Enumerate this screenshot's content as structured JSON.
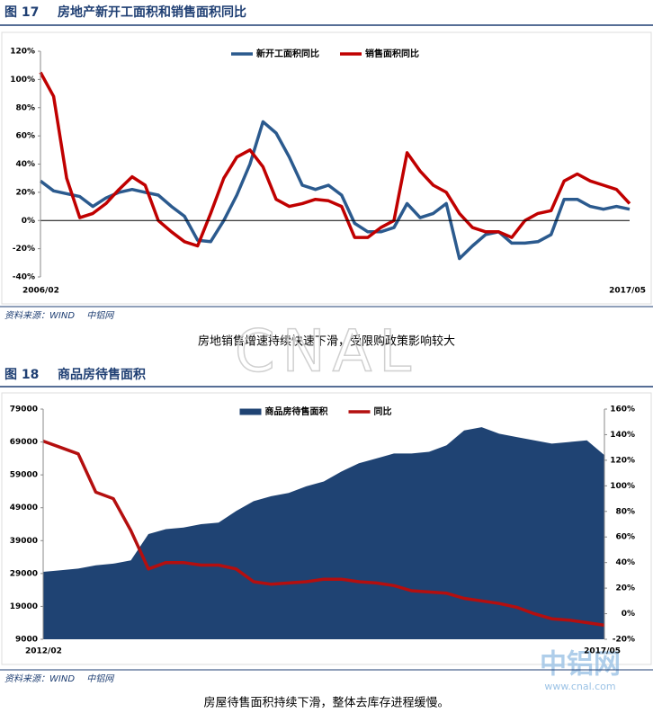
{
  "figures": [
    {
      "label": "图 17",
      "title": "房地产新开工面积和销售面积同比",
      "source": "资料来源：WIND　 中铝网",
      "caption": "房地销售增速持续快速下滑，受限购政策影响较大"
    },
    {
      "label": "图 18",
      "title": "商品房待售面积",
      "source": "资料来源：WIND　 中铝网",
      "caption": "房屋待售面积持续下滑，整体去库存进程缓慢。"
    }
  ],
  "watermark": {
    "text": "CNAL",
    "logo": "中铝网",
    "url": "www.cnal.com"
  },
  "chart_data": [
    {
      "type": "line",
      "legend": "top",
      "categories": [
        "2006/02",
        null,
        null,
        null,
        null,
        null,
        null,
        null,
        null,
        null,
        null,
        null,
        null,
        null,
        null,
        null,
        null,
        null,
        null,
        null,
        null,
        null,
        null,
        null,
        null,
        null,
        null,
        null,
        null,
        null,
        null,
        null,
        null,
        null,
        null,
        null,
        null,
        null,
        null,
        null,
        null,
        null,
        null,
        null,
        null,
        "2017/05"
      ],
      "ylim": [
        -40,
        120
      ],
      "yticks": [
        {
          "value": -40,
          "label": "-40%"
        },
        {
          "value": -20,
          "label": "-20%"
        },
        {
          "value": 0,
          "label": "0%"
        },
        {
          "value": 20,
          "label": "20%"
        },
        {
          "value": 40,
          "label": "40%"
        },
        {
          "value": 60,
          "label": "60%"
        },
        {
          "value": 80,
          "label": "80%"
        },
        {
          "value": 100,
          "label": "100%"
        },
        {
          "value": 120,
          "label": "120%"
        }
      ],
      "series": [
        {
          "name": "新开工面积同比",
          "color": "#2b5a8e",
          "values": [
            28,
            21,
            19,
            17,
            10,
            16,
            20,
            22,
            20,
            18,
            10,
            3,
            -14,
            -15,
            0,
            18,
            40,
            70,
            62,
            45,
            25,
            22,
            25,
            18,
            -2,
            -8,
            -8,
            -5,
            12,
            2,
            5,
            12,
            -27,
            -18,
            -10,
            -8,
            -16,
            -16,
            -15,
            -10,
            15,
            15,
            10,
            8,
            10,
            8
          ]
        },
        {
          "name": "销售面积同比",
          "color": "#c00000",
          "values": [
            105,
            88,
            30,
            2,
            5,
            12,
            22,
            31,
            25,
            0,
            -8,
            -15,
            -18,
            5,
            30,
            45,
            50,
            38,
            15,
            10,
            12,
            15,
            14,
            10,
            -12,
            -12,
            -5,
            0,
            48,
            35,
            25,
            20,
            5,
            -5,
            -8,
            -8,
            -12,
            0,
            5,
            7,
            28,
            33,
            28,
            25,
            22,
            12
          ]
        }
      ]
    },
    {
      "type": "area-line",
      "legend": "top",
      "categories": [
        "2012/02",
        null,
        null,
        null,
        null,
        null,
        null,
        null,
        null,
        null,
        null,
        null,
        null,
        null,
        null,
        null,
        null,
        null,
        null,
        null,
        null,
        null,
        null,
        null,
        null,
        null,
        null,
        null,
        null,
        null,
        null,
        null,
        "2017/05"
      ],
      "ylim": [
        9000,
        79000
      ],
      "yticks": [
        9000,
        19000,
        29000,
        39000,
        49000,
        59000,
        69000,
        79000
      ],
      "y2lim": [
        -20,
        160
      ],
      "y2ticks": [
        {
          "value": -20,
          "label": "-20%"
        },
        {
          "value": 0,
          "label": "0%"
        },
        {
          "value": 20,
          "label": "20%"
        },
        {
          "value": 40,
          "label": "40%"
        },
        {
          "value": 60,
          "label": "60%"
        },
        {
          "value": 80,
          "label": "80%"
        },
        {
          "value": 100,
          "label": "100%"
        },
        {
          "value": 120,
          "label": "120%"
        },
        {
          "value": 140,
          "label": "140%"
        },
        {
          "value": 160,
          "label": "160%"
        }
      ],
      "series": [
        {
          "name": "商品房待售面积",
          "color": "#1f4373",
          "kind": "area",
          "values": [
            29500,
            30000,
            30500,
            31500,
            32000,
            33000,
            41000,
            42500,
            43000,
            44000,
            44500,
            48000,
            51000,
            52500,
            53500,
            55500,
            57000,
            60000,
            62500,
            64000,
            65500,
            65500,
            66000,
            68000,
            72500,
            73500,
            71500,
            70500,
            69500,
            68500,
            69000,
            69500,
            65000
          ]
        },
        {
          "name": "同比",
          "color": "#b40f0f",
          "kind": "line",
          "axis": "y2",
          "values": [
            135,
            130,
            125,
            95,
            90,
            65,
            35,
            40,
            40,
            38,
            38,
            35,
            25,
            23,
            24,
            25,
            27,
            27,
            25,
            24,
            22,
            18,
            17,
            16,
            12,
            10,
            8,
            5,
            0,
            -4,
            -5,
            -7,
            -9
          ]
        }
      ]
    }
  ]
}
